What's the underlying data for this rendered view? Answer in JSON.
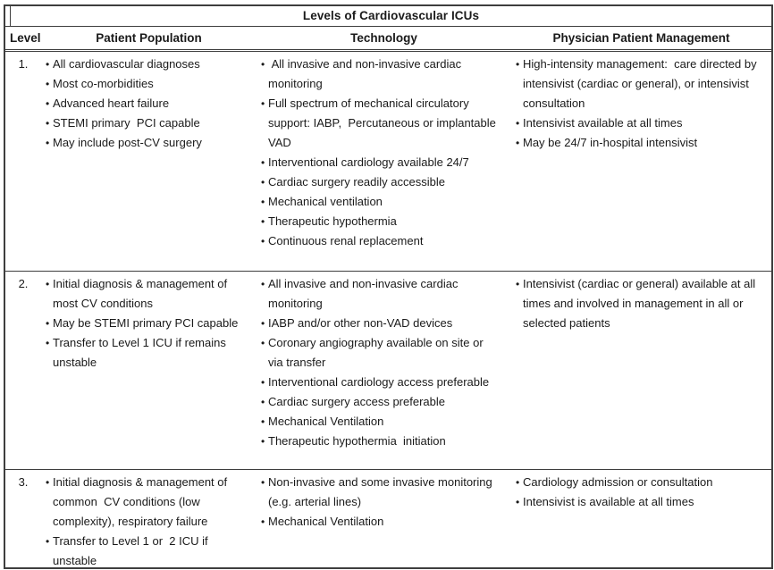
{
  "title": "Levels of Cardiovascular ICUs",
  "columns": {
    "level": "Level",
    "patient_population": "Patient Population",
    "technology": "Technology",
    "physician_patient_management": "Physician Patient Management"
  },
  "colors": {
    "border": "#3e3e3e",
    "text": "#1a1a1a",
    "background": "#ffffff"
  },
  "rows": [
    {
      "level": "1.",
      "patient_population": [
        "All cardiovascular diagnoses",
        "Most co-morbidities",
        "Advanced heart failure",
        "STEMI primary  PCI capable",
        "May include post-CV surgery"
      ],
      "technology": [
        " All invasive and non-invasive cardiac monitoring",
        "Full spectrum of mechanical circulatory support: IABP,  Percutaneous or implantable VAD",
        "Interventional cardiology available 24/7",
        "Cardiac surgery readily accessible",
        "Mechanical ventilation",
        "Therapeutic hypothermia",
        "Continuous renal replacement"
      ],
      "physician_patient_management": [
        "High-intensity management:  care directed by intensivist (cardiac or general), or intensivist consultation",
        "Intensivist available at all times",
        "May be 24/7 in-hospital intensivist"
      ]
    },
    {
      "level": "2.",
      "patient_population": [
        "Initial diagnosis & management of most CV conditions",
        "May be STEMI primary PCI capable",
        "Transfer to Level 1 ICU if remains unstable"
      ],
      "technology": [
        "All invasive and non-invasive cardiac monitoring",
        "IABP and/or other non-VAD devices",
        "Coronary angiography available on site or via transfer",
        "Interventional cardiology access preferable",
        "Cardiac surgery access preferable",
        "Mechanical Ventilation",
        "Therapeutic hypothermia  initiation"
      ],
      "physician_patient_management": [
        "Intensivist (cardiac or general) available at all times and involved in management in all or selected patients"
      ]
    },
    {
      "level": "3.",
      "patient_population": [
        "Initial diagnosis & management of common  CV conditions (low complexity), respiratory failure",
        "Transfer to Level 1 or  2 ICU if unstable"
      ],
      "technology": [
        "Non-invasive and some invasive monitoring  (e.g. arterial lines)",
        "Mechanical Ventilation"
      ],
      "physician_patient_management": [
        "Cardiology admission or consultation",
        "Intensivist is available at all times"
      ]
    }
  ]
}
